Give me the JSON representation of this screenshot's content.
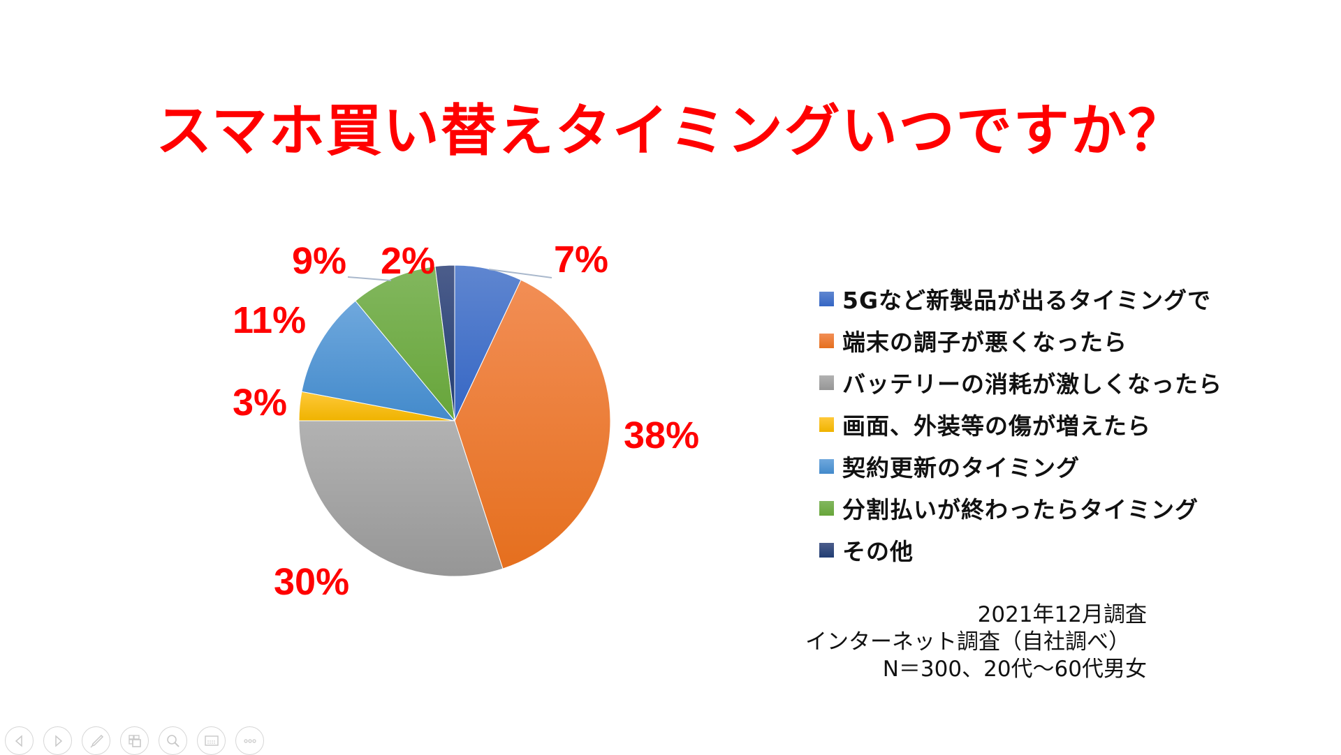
{
  "title": "スマホ買い替えタイミングいつですか？",
  "chart_data": {
    "type": "pie",
    "title": "スマホ買い替えタイミングいつですか？",
    "start_angle": "12 o'clock, clockwise",
    "categories": [
      "5Gなど新製品が出るタイミングで",
      "端末の調子が悪くなったら",
      "バッテリーの消耗が激しくなったら",
      "画面、外装等の傷が増えたら",
      "契約更新のタイミング",
      "分割払いが終わったらタイミング",
      "その他"
    ],
    "values": [
      7,
      38,
      30,
      3,
      11,
      9,
      2
    ],
    "labels": [
      "7%",
      "38%",
      "30%",
      "3%",
      "11%",
      "9%",
      "2%"
    ],
    "colors": [
      "#4472C4",
      "#ED7D31",
      "#A5A5A5",
      "#FFC000",
      "#5B9BD5",
      "#70AD47",
      "#264478"
    ],
    "legend_position": "right",
    "data_label_color": "#FF0000"
  },
  "legend": {
    "items": [
      {
        "label": "5Gなど新製品が出るタイミングで",
        "color": "#4472C4"
      },
      {
        "label": "端末の調子が悪くなったら",
        "color": "#ED7D31"
      },
      {
        "label": "バッテリーの消耗が激しくなったら",
        "color": "#A5A5A5"
      },
      {
        "label": "画面、外装等の傷が増えたら",
        "color": "#FFC000"
      },
      {
        "label": "契約更新のタイミング",
        "color": "#5B9BD5"
      },
      {
        "label": "分割払いが終わったらタイミング",
        "color": "#70AD47"
      },
      {
        "label": "その他",
        "color": "#264478"
      }
    ]
  },
  "footnote": {
    "line1": "2021年12月調査",
    "line2": "インターネット調査（自社調べ）",
    "line3": "N＝300、20代～60代男女"
  },
  "toolbar": {
    "buttons": [
      {
        "name": "previous-slide",
        "icon": "arrow-left-icon"
      },
      {
        "name": "next-slide",
        "icon": "arrow-right-icon"
      },
      {
        "name": "pen",
        "icon": "pen-icon"
      },
      {
        "name": "see-all-slides",
        "icon": "slides-icon"
      },
      {
        "name": "zoom",
        "icon": "magnifier-icon"
      },
      {
        "name": "subtitles",
        "icon": "subtitles-icon"
      },
      {
        "name": "more-options",
        "icon": "more-icon"
      }
    ]
  }
}
